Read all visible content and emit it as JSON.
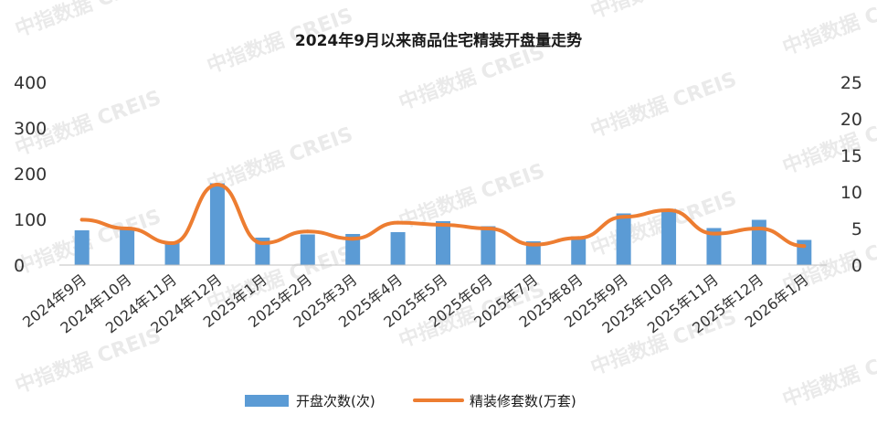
{
  "watermark": "中指数据 CREIS",
  "chart_data": {
    "type": "bar+line",
    "title": "2024年9月以来商品住宅精装开盘量走势",
    "categories": [
      "2024年9月",
      "2024年10月",
      "2024年11月",
      "2024年12月",
      "2025年1月",
      "2025年2月",
      "2025年3月",
      "2025年4月",
      "2025年5月",
      "2025年6月",
      "2025年7月",
      "2025年8月",
      "2025年9月",
      "2025年10月",
      "2025年11月",
      "2025年12月",
      "2026年1月"
    ],
    "y_left": {
      "ticks": [
        "0",
        "100",
        "200",
        "300",
        "400"
      ],
      "range": [
        0,
        400
      ]
    },
    "y_right": {
      "ticks": [
        "0",
        "5",
        "10",
        "15",
        "20",
        "25"
      ],
      "range": [
        0,
        25
      ]
    },
    "series": [
      {
        "name": "开盘次数(次)",
        "type": "bar",
        "axis": "left",
        "color": "#5b9bd5",
        "values": [
          76,
          80,
          49,
          179,
          60,
          67,
          68,
          72,
          96,
          85,
          52,
          63,
          113,
          123,
          81,
          99,
          55
        ]
      },
      {
        "name": "精装修套数(万套)",
        "type": "line",
        "axis": "right",
        "color": "#ed7d31",
        "values": [
          6.2,
          5.0,
          3.0,
          11.0,
          3.0,
          4.6,
          3.6,
          5.8,
          5.5,
          5.0,
          2.8,
          3.7,
          6.6,
          7.5,
          4.3,
          5.0,
          2.6
        ]
      }
    ],
    "legend_position": "bottom",
    "grid": false
  }
}
